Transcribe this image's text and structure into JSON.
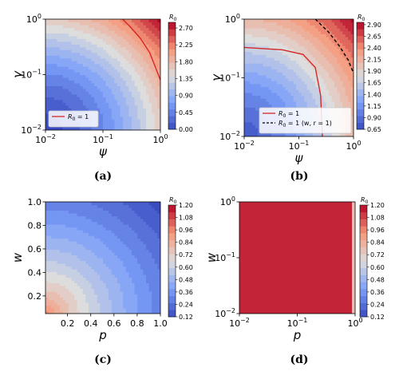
{
  "panels": [
    {
      "id": "a",
      "caption": "(a)",
      "type": "heatmap",
      "xlabel": "ψ",
      "ylabel": "γ",
      "xscale": "log",
      "yscale": "log",
      "xlim": [
        0.01,
        1
      ],
      "ylim": [
        0.01,
        1
      ],
      "x_ticks": [
        {
          "v": 0.01,
          "b": "10",
          "e": "−2"
        },
        {
          "v": 0.1,
          "b": "10",
          "e": "−1"
        },
        {
          "v": 1,
          "b": "10",
          "e": "0"
        }
      ],
      "y_ticks": [
        {
          "v": 0.01,
          "b": "10",
          "e": "−2"
        },
        {
          "v": 0.1,
          "b": "10",
          "e": "−1"
        },
        {
          "v": 1,
          "b": "10",
          "e": "0"
        }
      ],
      "colorbar": {
        "label": "R",
        "label_sub": "0",
        "min": 0.0,
        "max": 2.85,
        "ticks": [
          "0.00",
          "0.45",
          "0.90",
          "1.35",
          "1.80",
          "2.25",
          "2.70"
        ]
      },
      "legend": {
        "position": "lower-left",
        "entries": [
          {
            "label": "R",
            "sub": "0",
            "rest": " = 1",
            "color": "#d62728",
            "dash": false
          }
        ]
      },
      "contours": [
        {
          "style": "solid",
          "color": "#d62728",
          "points": [
            [
              0.22,
              1.0
            ],
            [
              0.3,
              0.72
            ],
            [
              0.45,
              0.45
            ],
            [
              0.65,
              0.25
            ],
            [
              1.0,
              0.08
            ]
          ]
        }
      ]
    },
    {
      "id": "b",
      "caption": "(b)",
      "type": "heatmap",
      "xlabel": "ψ",
      "ylabel": "γ",
      "xscale": "log",
      "yscale": "log",
      "xlim": [
        0.01,
        1
      ],
      "ylim": [
        0.01,
        1
      ],
      "x_ticks": [
        {
          "v": 0.01,
          "b": "10",
          "e": "−2"
        },
        {
          "v": 0.1,
          "b": "10",
          "e": "−1"
        },
        {
          "v": 1,
          "b": "10",
          "e": "0"
        }
      ],
      "y_ticks": [
        {
          "v": 0.01,
          "b": "10",
          "e": "−2"
        },
        {
          "v": 0.1,
          "b": "10",
          "e": "−1"
        },
        {
          "v": 1,
          "b": "10",
          "e": "0"
        }
      ],
      "colorbar": {
        "label": "R",
        "label_sub": "0",
        "min": 0.65,
        "max": 2.95,
        "ticks": [
          "0.65",
          "0.90",
          "1.15",
          "1.40",
          "1.65",
          "1.90",
          "2.15",
          "2.40",
          "2.65",
          "2.90"
        ]
      },
      "legend": {
        "position": "lower-right",
        "entries": [
          {
            "label": "R",
            "sub": "0",
            "rest": " = 1",
            "color": "#d62728",
            "dash": false
          },
          {
            "label": "R",
            "sub": "0",
            "rest": " = 1 (w, r = 1)",
            "color": "#000000",
            "dash": true
          }
        ]
      },
      "contours": [
        {
          "style": "solid",
          "color": "#d62728",
          "points": [
            [
              0.01,
              0.33
            ],
            [
              0.05,
              0.3
            ],
            [
              0.12,
              0.25
            ],
            [
              0.2,
              0.15
            ],
            [
              0.25,
              0.05
            ],
            [
              0.27,
              0.01
            ]
          ]
        },
        {
          "style": "dashed",
          "color": "#000000",
          "points": [
            [
              0.2,
              1.0
            ],
            [
              0.35,
              0.6
            ],
            [
              0.55,
              0.35
            ],
            [
              0.8,
              0.2
            ],
            [
              1.0,
              0.12
            ]
          ]
        }
      ]
    },
    {
      "id": "c",
      "caption": "(c)",
      "type": "heatmap",
      "xlabel": "p",
      "ylabel": "w",
      "xscale": "linear",
      "yscale": "linear",
      "xlim": [
        0.01,
        1.0
      ],
      "ylim": [
        0.05,
        1.0
      ],
      "x_ticks": [
        {
          "v": 0.2,
          "t": "0.2"
        },
        {
          "v": 0.4,
          "t": "0.4"
        },
        {
          "v": 0.6,
          "t": "0.6"
        },
        {
          "v": 0.8,
          "t": "0.8"
        },
        {
          "v": 1.0,
          "t": "1.0"
        }
      ],
      "y_ticks": [
        {
          "v": 0.2,
          "t": "0.2"
        },
        {
          "v": 0.4,
          "t": "0.4"
        },
        {
          "v": 0.6,
          "t": "0.6"
        },
        {
          "v": 0.8,
          "t": "0.8"
        },
        {
          "v": 1.0,
          "t": "1.0"
        }
      ],
      "colorbar": {
        "label": "R",
        "label_sub": "0",
        "min": 0.12,
        "max": 1.2,
        "ticks": [
          "0.12",
          "0.24",
          "0.36",
          "0.48",
          "0.60",
          "0.72",
          "0.84",
          "0.96",
          "1.08",
          "1.20"
        ]
      },
      "legend": null,
      "contours": []
    },
    {
      "id": "d",
      "caption": "(d)",
      "type": "heatmap",
      "xlabel": "p",
      "ylabel": "w",
      "xscale": "log",
      "yscale": "log",
      "xlim": [
        0.01,
        1
      ],
      "ylim": [
        0.01,
        1
      ],
      "x_ticks": [
        {
          "v": 0.01,
          "b": "10",
          "e": "−2"
        },
        {
          "v": 0.1,
          "b": "10",
          "e": "−1"
        },
        {
          "v": 1,
          "b": "10",
          "e": "0"
        }
      ],
      "y_ticks": [
        {
          "v": 0.01,
          "b": "10",
          "e": "−2"
        },
        {
          "v": 0.1,
          "b": "10",
          "e": "−1"
        },
        {
          "v": 1,
          "b": "10",
          "e": "0"
        }
      ],
      "colorbar": {
        "label": "R",
        "label_sub": "0",
        "min": 0.12,
        "max": 1.2,
        "ticks": [
          "0.12",
          "0.24",
          "0.36",
          "0.48",
          "0.60",
          "0.72",
          "0.84",
          "0.96",
          "1.08",
          "1.20"
        ]
      },
      "legend": null,
      "contours": []
    }
  ],
  "colormap": "coolwarm"
}
